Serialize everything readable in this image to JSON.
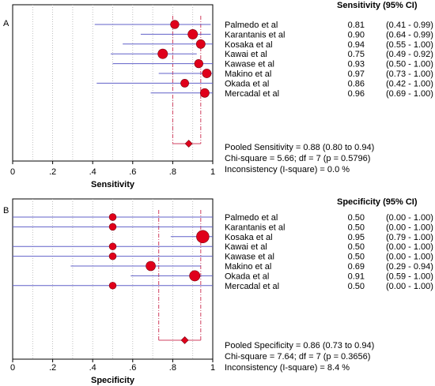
{
  "chart_data": [
    {
      "type": "forest",
      "panel_label": "A",
      "xlabel": "Sensitivity",
      "xlim": [
        0,
        1
      ],
      "xticks": [
        "0",
        ".2",
        ".4",
        ".6",
        ".8",
        "1"
      ],
      "xtick_values": [
        0,
        0.2,
        0.4,
        0.6,
        0.8,
        1.0
      ],
      "minor_gridlines": [
        0.1,
        0.3,
        0.5,
        0.7,
        0.9
      ],
      "column_header": "Sensitivity (95% CI)",
      "studies": [
        {
          "name": "Palmedo et al",
          "estimate": 0.81,
          "lower": 0.41,
          "upper": 0.99,
          "estimate_text": "0.81",
          "ci_text": "(0.41 - 0.99)",
          "weight": 0.9
        },
        {
          "name": "Karantanis et al",
          "estimate": 0.9,
          "lower": 0.64,
          "upper": 0.99,
          "estimate_text": "0.90",
          "ci_text": "(0.64 - 0.99)",
          "weight": 1.2
        },
        {
          "name": "Kosaka et al",
          "estimate": 0.94,
          "lower": 0.55,
          "upper": 1.0,
          "estimate_text": "0.94",
          "ci_text": "(0.55 - 1.00)",
          "weight": 1.0
        },
        {
          "name": "Kawai et al",
          "estimate": 0.75,
          "lower": 0.49,
          "upper": 0.92,
          "estimate_text": "0.75",
          "ci_text": "(0.49 - 0.92)",
          "weight": 1.2
        },
        {
          "name": "Kawase et al",
          "estimate": 0.93,
          "lower": 0.5,
          "upper": 1.0,
          "estimate_text": "0.93",
          "ci_text": "(0.50 - 1.00)",
          "weight": 0.9
        },
        {
          "name": "Makino et al",
          "estimate": 0.97,
          "lower": 0.73,
          "upper": 1.0,
          "estimate_text": "0.97",
          "ci_text": "(0.73 - 1.00)",
          "weight": 1.0
        },
        {
          "name": "Okada et al",
          "estimate": 0.86,
          "lower": 0.42,
          "upper": 1.0,
          "estimate_text": "0.86",
          "ci_text": "(0.42 - 1.00)",
          "weight": 0.8
        },
        {
          "name": "Mercadal et al",
          "estimate": 0.96,
          "lower": 0.69,
          "upper": 1.0,
          "estimate_text": "0.96",
          "ci_text": "(0.69 - 1.00)",
          "weight": 1.0
        }
      ],
      "pooled": {
        "estimate": 0.88,
        "lower": 0.8,
        "upper": 0.94
      },
      "summary_lines": [
        "Pooled Sensitivity = 0.88 (0.80 to 0.94)",
        "Chi-square = 5.66; df =  7 (p = 0.5796)",
        "Inconsistency (I-square) = 0.0 %"
      ],
      "colors": {
        "marker": "#e0001b",
        "ci_line": "#6060c8",
        "pooled_ci": "#d04060",
        "grid": "#b0b0b0"
      }
    },
    {
      "type": "forest",
      "panel_label": "B",
      "xlabel": "Specificity",
      "xlim": [
        0,
        1
      ],
      "xticks": [
        "0",
        ".2",
        ".4",
        ".6",
        ".8",
        "1"
      ],
      "xtick_values": [
        0,
        0.2,
        0.4,
        0.6,
        0.8,
        1.0
      ],
      "minor_gridlines": [
        0.1,
        0.3,
        0.5,
        0.7,
        0.9
      ],
      "column_header": "Specificity (95% CI)",
      "studies": [
        {
          "name": "Palmedo et al",
          "estimate": 0.5,
          "lower": 0.0,
          "upper": 1.0,
          "estimate_text": "0.50",
          "ci_text": "(0.00 - 1.00)",
          "weight": 0.55
        },
        {
          "name": "Karantanis et al",
          "estimate": 0.5,
          "lower": 0.0,
          "upper": 1.0,
          "estimate_text": "0.50",
          "ci_text": "(0.00 - 1.00)",
          "weight": 0.55
        },
        {
          "name": "Kosaka et al",
          "estimate": 0.95,
          "lower": 0.79,
          "upper": 1.0,
          "estimate_text": "0.95",
          "ci_text": "(0.79 - 1.00)",
          "weight": 1.9
        },
        {
          "name": "Kawai et al",
          "estimate": 0.5,
          "lower": 0.0,
          "upper": 1.0,
          "estimate_text": "0.50",
          "ci_text": "(0.00 - 1.00)",
          "weight": 0.55
        },
        {
          "name": "Kawase et al",
          "estimate": 0.5,
          "lower": 0.0,
          "upper": 1.0,
          "estimate_text": "0.50",
          "ci_text": "(0.00 - 1.00)",
          "weight": 0.55
        },
        {
          "name": "Makino et al",
          "estimate": 0.69,
          "lower": 0.29,
          "upper": 0.94,
          "estimate_text": "0.69",
          "ci_text": "(0.29 - 0.94)",
          "weight": 1.15
        },
        {
          "name": "Okada et al",
          "estimate": 0.91,
          "lower": 0.59,
          "upper": 1.0,
          "estimate_text": "0.91",
          "ci_text": "(0.59 - 1.00)",
          "weight": 1.4
        },
        {
          "name": "Mercadal et al",
          "estimate": 0.5,
          "lower": 0.0,
          "upper": 1.0,
          "estimate_text": "0.50",
          "ci_text": "(0.00 - 1.00)",
          "weight": 0.55
        }
      ],
      "pooled": {
        "estimate": 0.86,
        "lower": 0.73,
        "upper": 0.94
      },
      "summary_lines": [
        "Pooled Specificity = 0.86 (0.73 to 0.94)",
        "Chi-square = 7.64; df =  7 (p = 0.3656)",
        "Inconsistency (I-square) = 8.4 %"
      ],
      "colors": {
        "marker": "#e0001b",
        "ci_line": "#6060c8",
        "pooled_ci": "#d04060",
        "grid": "#b0b0b0"
      }
    }
  ]
}
